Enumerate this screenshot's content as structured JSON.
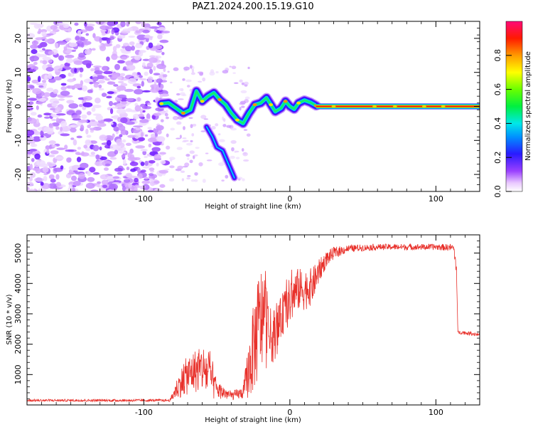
{
  "title": "PAZ1.2024.200.15.19.G10",
  "chart_data": [
    {
      "type": "heatmap",
      "xlabel": "Height of straight line (km)",
      "ylabel": "Frequency (Hz)",
      "xlim": [
        -180,
        130
      ],
      "ylim": [
        -25,
        25
      ],
      "xticks": [
        -100,
        0,
        100
      ],
      "xtick_labels": [
        "-100",
        "0",
        "100"
      ],
      "yticks": [
        -20,
        -10,
        0,
        10,
        20
      ],
      "ytick_labels": [
        "-20",
        "-10",
        "0",
        "10",
        "20"
      ],
      "ridge": [
        {
          "x": -88,
          "y": 0.8
        },
        {
          "x": -83,
          "y": 1.0
        },
        {
          "x": -78,
          "y": -0.5
        },
        {
          "x": -73,
          "y": -2.0
        },
        {
          "x": -68,
          "y": -1.0
        },
        {
          "x": -64,
          "y": 4.5
        },
        {
          "x": -60,
          "y": 1.5
        },
        {
          "x": -56,
          "y": 3.0
        },
        {
          "x": -52,
          "y": 4.0
        },
        {
          "x": -48,
          "y": 2.0
        },
        {
          "x": -44,
          "y": 0.5
        },
        {
          "x": -40,
          "y": -2.0
        },
        {
          "x": -36,
          "y": -4.0
        },
        {
          "x": -32,
          "y": -5.0
        },
        {
          "x": -28,
          "y": -2.0
        },
        {
          "x": -24,
          "y": 0.5
        },
        {
          "x": -20,
          "y": 1.0
        },
        {
          "x": -16,
          "y": 2.5
        },
        {
          "x": -13,
          "y": 0.5
        },
        {
          "x": -10,
          "y": -1.5
        },
        {
          "x": -6,
          "y": -0.5
        },
        {
          "x": -3,
          "y": 1.5
        },
        {
          "x": 0,
          "y": 0.0
        },
        {
          "x": 3,
          "y": -0.8
        },
        {
          "x": 6,
          "y": 1.0
        },
        {
          "x": 10,
          "y": 1.8
        },
        {
          "x": 14,
          "y": 1.2
        },
        {
          "x": 18,
          "y": 0.2
        }
      ],
      "branch": [
        {
          "x": -57,
          "y": -6
        },
        {
          "x": -53,
          "y": -9
        },
        {
          "x": -50,
          "y": -12
        },
        {
          "x": -46,
          "y": -13
        },
        {
          "x": -43,
          "y": -16
        },
        {
          "x": -40,
          "y": -19
        },
        {
          "x": -38,
          "y": -21
        }
      ],
      "carrier": {
        "x_start": 18,
        "x_end": 130,
        "y": 0
      },
      "noise_x_range": [
        -180,
        -85
      ],
      "noise_y_range": [
        -25,
        25
      ],
      "colorbar": {
        "label": "Normalized spectral amplitude",
        "range": [
          0,
          1
        ],
        "ticks": [
          0.0,
          0.2,
          0.4,
          0.6,
          0.8
        ],
        "tick_labels": [
          "0.0",
          "0.2",
          "0.4",
          "0.6",
          "0.8"
        ]
      }
    },
    {
      "type": "line",
      "xlabel": "Height of straight line (km)",
      "ylabel": "SNR (10 * v/v)",
      "xlim": [
        -180,
        130
      ],
      "ylim": [
        0,
        5600
      ],
      "xticks": [
        -100,
        0,
        100
      ],
      "xtick_labels": [
        "-100",
        "0",
        "100"
      ],
      "yticks": [
        1000,
        2000,
        3000,
        4000,
        5000
      ],
      "ytick_labels": [
        "1000",
        "2000",
        "3000",
        "4000",
        "5000"
      ],
      "color": "#e8302a",
      "envelope": [
        {
          "x": -180,
          "mean": 150,
          "amp": 40
        },
        {
          "x": -82,
          "mean": 150,
          "amp": 40
        },
        {
          "x": -78,
          "mean": 500,
          "amp": 300
        },
        {
          "x": -72,
          "mean": 900,
          "amp": 600
        },
        {
          "x": -66,
          "mean": 1100,
          "amp": 700
        },
        {
          "x": -60,
          "mean": 1200,
          "amp": 800
        },
        {
          "x": -55,
          "mean": 1000,
          "amp": 900
        },
        {
          "x": -50,
          "mean": 500,
          "amp": 300
        },
        {
          "x": -40,
          "mean": 300,
          "amp": 150
        },
        {
          "x": -32,
          "mean": 400,
          "amp": 200
        },
        {
          "x": -27,
          "mean": 1400,
          "amp": 1200
        },
        {
          "x": -22,
          "mean": 2500,
          "amp": 1800
        },
        {
          "x": -18,
          "mean": 3000,
          "amp": 1800
        },
        {
          "x": -14,
          "mean": 2200,
          "amp": 1000
        },
        {
          "x": -9,
          "mean": 2400,
          "amp": 800
        },
        {
          "x": -5,
          "mean": 3000,
          "amp": 700
        },
        {
          "x": 0,
          "mean": 3400,
          "amp": 800
        },
        {
          "x": 5,
          "mean": 3800,
          "amp": 700
        },
        {
          "x": 10,
          "mean": 3800,
          "amp": 700
        },
        {
          "x": 15,
          "mean": 3900,
          "amp": 600
        },
        {
          "x": 20,
          "mean": 4400,
          "amp": 400
        },
        {
          "x": 25,
          "mean": 4800,
          "amp": 250
        },
        {
          "x": 30,
          "mean": 5000,
          "amp": 200
        },
        {
          "x": 40,
          "mean": 5150,
          "amp": 120
        },
        {
          "x": 60,
          "mean": 5200,
          "amp": 100
        },
        {
          "x": 80,
          "mean": 5200,
          "amp": 100
        },
        {
          "x": 100,
          "mean": 5200,
          "amp": 100
        },
        {
          "x": 112,
          "mean": 5180,
          "amp": 120
        },
        {
          "x": 114,
          "mean": 4600,
          "amp": 300
        },
        {
          "x": 115,
          "mean": 2400,
          "amp": 60
        },
        {
          "x": 130,
          "mean": 2320,
          "amp": 60
        }
      ]
    }
  ]
}
